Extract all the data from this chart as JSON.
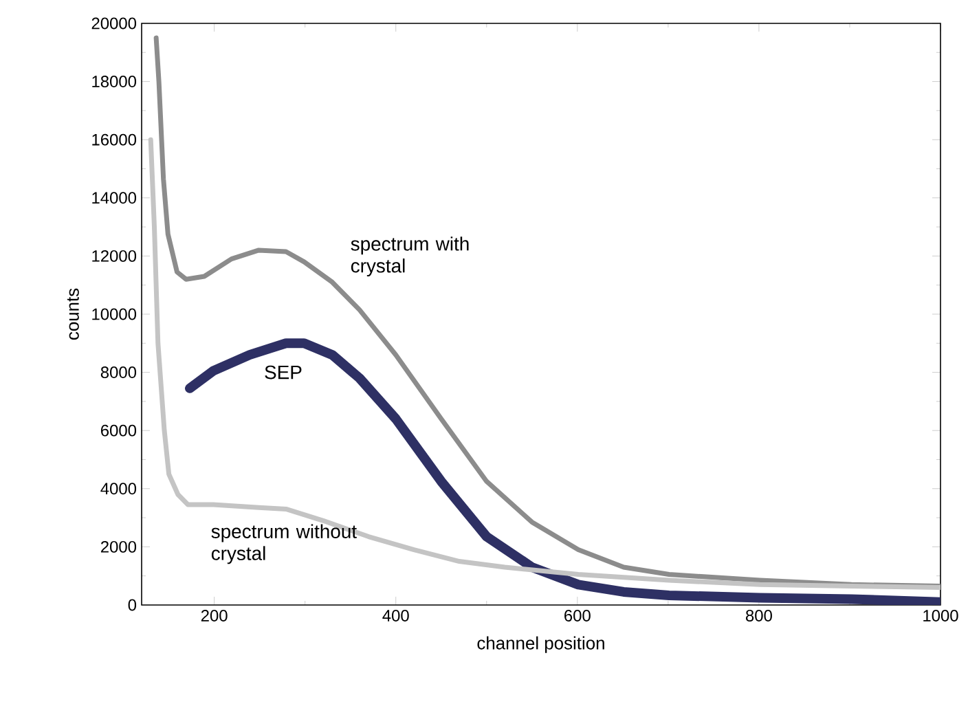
{
  "chart_data": {
    "type": "line",
    "xlabel": "channel position",
    "ylabel": "counts",
    "xlim": [
      120,
      1000
    ],
    "xticks": [
      200,
      400,
      600,
      800,
      1000
    ],
    "ylim": [
      0,
      20000
    ],
    "yticks": [
      0,
      2000,
      4000,
      6000,
      8000,
      10000,
      12000,
      14000,
      16000,
      18000,
      20000
    ],
    "grid": false,
    "legend": false,
    "series": [
      {
        "name": "spectrum with crystal",
        "color": "#8c8c8c",
        "x": [
          136,
          139,
          144,
          149,
          159,
          169,
          189,
          219,
          249,
          279,
          299,
          330,
          360,
          400,
          450,
          500,
          550,
          601,
          651,
          701,
          801,
          902,
          1000
        ],
        "values": [
          19500,
          18000,
          14650,
          12750,
          11450,
          11200,
          11300,
          11900,
          12200,
          12150,
          11800,
          11100,
          10150,
          8600,
          6400,
          4250,
          2850,
          1900,
          1300,
          1050,
          850,
          700,
          650
        ]
      },
      {
        "name": "SEP",
        "color": "#2e3064",
        "x": [
          173,
          199,
          239,
          279,
          299,
          330,
          360,
          400,
          450,
          500,
          550,
          601,
          651,
          701,
          801,
          902,
          1000
        ],
        "values": [
          7450,
          8050,
          8600,
          9000,
          9000,
          8600,
          7800,
          6400,
          4250,
          2350,
          1300,
          700,
          450,
          330,
          250,
          200,
          100
        ]
      },
      {
        "name": "spectrum without crystal",
        "color": "#c4c4c4",
        "x": [
          130,
          134,
          138,
          145,
          150,
          160,
          171,
          199,
          249,
          279,
          320,
          370,
          420,
          470,
          520,
          601,
          701,
          801,
          902,
          1000
        ],
        "values": [
          16000,
          13000,
          9000,
          6000,
          4500,
          3800,
          3450,
          3450,
          3350,
          3300,
          2900,
          2350,
          1900,
          1500,
          1300,
          1050,
          850,
          700,
          650,
          600
        ]
      }
    ]
  }
}
